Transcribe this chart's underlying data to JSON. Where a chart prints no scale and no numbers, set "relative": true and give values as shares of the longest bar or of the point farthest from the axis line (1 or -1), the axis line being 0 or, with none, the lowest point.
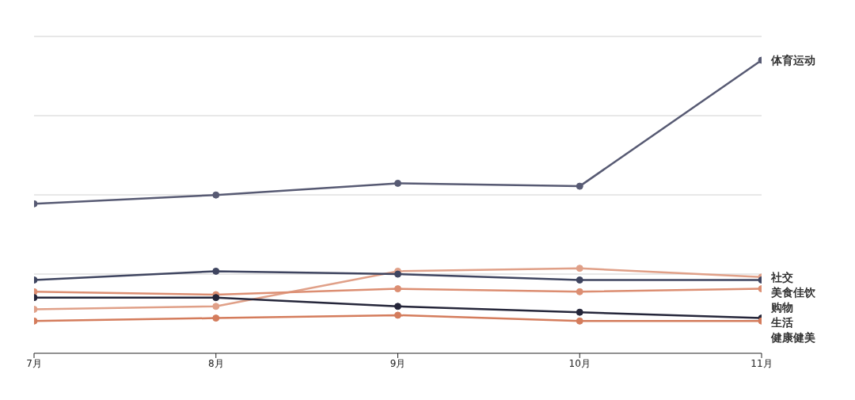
{
  "chart_data": {
    "type": "line",
    "relative": true,
    "categories": [
      "7月",
      "8月",
      "9月",
      "10月",
      "11月"
    ],
    "series": [
      {
        "name": "体育运动",
        "color": "#575a73",
        "values": [
          0.51,
          0.54,
          0.58,
          0.57,
          1
        ]
      },
      {
        "name": "社交",
        "color": "#e0a088",
        "values": [
          0.15,
          0.16,
          0.28,
          0.29,
          0.26
        ]
      },
      {
        "name": "美食佳饮",
        "color": "#3f4560",
        "values": [
          0.25,
          0.28,
          0.27,
          0.25,
          0.25
        ]
      },
      {
        "name": "购物",
        "color": "#dc8e72",
        "values": [
          0.21,
          0.2,
          0.22,
          0.21,
          0.22
        ]
      },
      {
        "name": "生活",
        "color": "#25263a",
        "values": [
          0.19,
          0.19,
          0.16,
          0.14,
          0.12
        ]
      },
      {
        "name": "健康健美",
        "color": "#d47c5c",
        "values": [
          0.11,
          0.12,
          0.13,
          0.11,
          0.11
        ]
      }
    ],
    "grid": "y",
    "marker": "circle",
    "line_style": "solid"
  }
}
